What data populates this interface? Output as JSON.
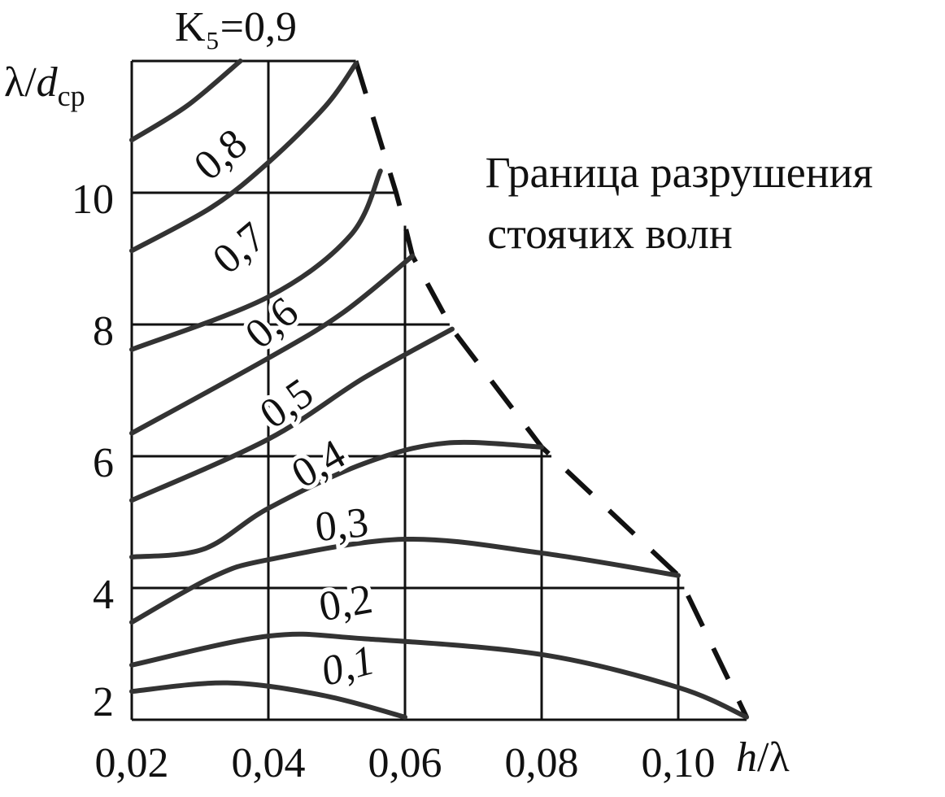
{
  "chart_data": {
    "type": "line",
    "x_label": [
      "h",
      "/λ"
    ],
    "y_label": [
      "λ/",
      "d",
      "ср"
    ],
    "annotation": [
      "Граница разрушения",
      "стоячих волн"
    ],
    "xlim": [
      0.02,
      0.11
    ],
    "ylim": [
      2,
      12
    ],
    "xticks": [
      {
        "value": 0.02,
        "label": "0,02"
      },
      {
        "value": 0.04,
        "label": "0,04"
      },
      {
        "value": 0.06,
        "label": "0,06"
      },
      {
        "value": 0.08,
        "label": "0,08"
      },
      {
        "value": 0.1,
        "label": "0,10"
      }
    ],
    "yticks": [
      2,
      4,
      6,
      8,
      10
    ],
    "grid": true,
    "series": [
      {
        "name": "0,1",
        "color": "#333333",
        "x": [
          0.02,
          0.034,
          0.048,
          0.06
        ],
        "values": [
          2.43,
          2.56,
          2.37,
          2.04
        ]
      },
      {
        "name": "0,2",
        "color": "#333333",
        "x": [
          0.02,
          0.04,
          0.054,
          0.08,
          0.1,
          0.11
        ],
        "values": [
          2.83,
          3.27,
          3.23,
          2.99,
          2.49,
          2.04
        ]
      },
      {
        "name": "0,3",
        "color": "#333333",
        "x": [
          0.02,
          0.0317,
          0.04,
          0.06,
          0.08,
          0.1
        ],
        "values": [
          3.48,
          4.16,
          4.43,
          4.74,
          4.53,
          4.19
        ]
      },
      {
        "name": "0,4",
        "color": "#333333",
        "x": [
          0.02,
          0.0305,
          0.04,
          0.054,
          0.066,
          0.08
        ],
        "values": [
          4.47,
          4.59,
          5.21,
          5.89,
          6.2,
          6.14
        ]
      },
      {
        "name": "0,5",
        "color": "#333333",
        "x": [
          0.02,
          0.04,
          0.054,
          0.0669
        ],
        "values": [
          5.33,
          6.26,
          7.19,
          7.93
        ]
      },
      {
        "name": "0,6",
        "color": "#333333",
        "x": [
          0.02,
          0.04,
          0.0508,
          0.0611
        ],
        "values": [
          6.35,
          7.49,
          8.17,
          9.04
        ]
      },
      {
        "name": "0,7",
        "color": "#333333",
        "x": [
          0.02,
          0.04,
          0.052,
          0.0564
        ],
        "values": [
          7.62,
          8.42,
          9.35,
          10.33
        ]
      },
      {
        "name": "0,8",
        "color": "#333333",
        "x": [
          0.02,
          0.0317,
          0.04,
          0.0484,
          0.0528
        ],
        "values": [
          9.12,
          9.78,
          10.46,
          11.32,
          11.96
        ]
      },
      {
        "name": "K₅=0,9",
        "color": "#333333",
        "x": [
          0.02,
          0.0281,
          0.0359
        ],
        "values": [
          10.8,
          11.32,
          12
        ]
      }
    ],
    "boundary": {
      "color": "#111111",
      "x": [
        0.0528,
        0.0587,
        0.06,
        0.0611,
        0.0669,
        0.08,
        0.1,
        0.11
      ],
      "values": [
        12,
        10,
        9.5,
        9.04,
        7.93,
        6.14,
        4.19,
        2.04
      ]
    }
  }
}
